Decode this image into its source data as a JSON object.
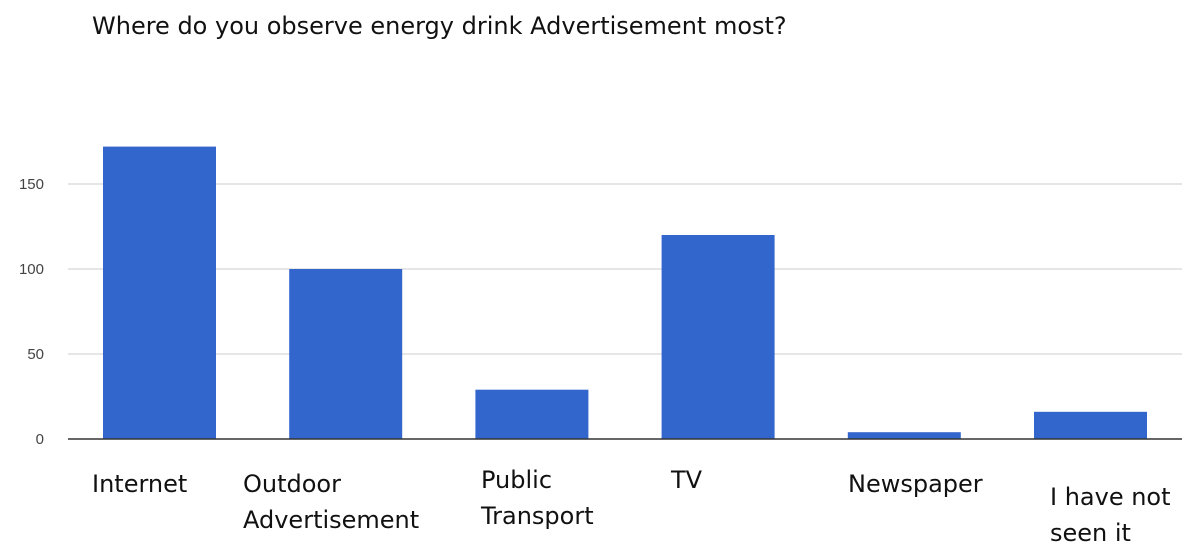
{
  "chart_data": {
    "type": "bar",
    "title": "Where do you observe energy drink Advertisement most?",
    "categories": [
      {
        "lines": [
          "Internet"
        ]
      },
      {
        "lines": [
          "Outdoor",
          "Advertisement"
        ]
      },
      {
        "lines": [
          "Public",
          "Transport"
        ]
      },
      {
        "lines": [
          "TV"
        ]
      },
      {
        "lines": [
          "Newspaper"
        ]
      },
      {
        "lines": [
          "I have not",
          "seen it"
        ]
      }
    ],
    "values": [
      172,
      100,
      29,
      120,
      4,
      16
    ],
    "ylim": [
      0,
      172
    ],
    "yticks": [
      0,
      50,
      100,
      150
    ],
    "grid": true,
    "legend": "none",
    "xlabel": "",
    "ylabel": "",
    "bar_color": "#3366cc",
    "grid_color": "#cccccc",
    "axis_color": "#333333"
  }
}
